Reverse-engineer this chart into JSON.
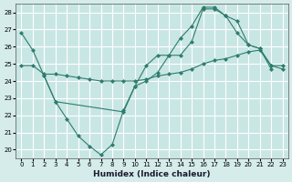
{
  "xlabel": "Humidex (Indice chaleur)",
  "line1_x": [
    0,
    1,
    2,
    3,
    4,
    5,
    6,
    7,
    8,
    9,
    10,
    11,
    12,
    13,
    14,
    15,
    16,
    17,
    18,
    19,
    20,
    21,
    22
  ],
  "line1_y": [
    26.8,
    25.8,
    24.3,
    22.8,
    21.8,
    20.8,
    20.2,
    19.7,
    20.3,
    22.3,
    23.7,
    24.0,
    24.5,
    25.5,
    26.5,
    27.2,
    28.3,
    28.3,
    27.8,
    27.5,
    26.1,
    25.9,
    24.7
  ],
  "line2_x": [
    0,
    1,
    2,
    3,
    4,
    5,
    6,
    7,
    8,
    9,
    10,
    11,
    12,
    13,
    14,
    15,
    16,
    17,
    18,
    19,
    20,
    21,
    22,
    23
  ],
  "line2_y": [
    24.9,
    24.9,
    24.4,
    24.4,
    24.3,
    24.2,
    24.1,
    24.0,
    24.0,
    24.0,
    24.0,
    24.1,
    24.3,
    24.4,
    24.5,
    24.7,
    25.0,
    25.2,
    25.3,
    25.5,
    25.7,
    25.8,
    24.9,
    24.9
  ],
  "line3_x": [
    2,
    3,
    9,
    10,
    11,
    12,
    13,
    14,
    15,
    16,
    17,
    18,
    19,
    20,
    21,
    22,
    23
  ],
  "line3_y": [
    24.3,
    22.8,
    22.2,
    23.7,
    24.9,
    25.5,
    25.5,
    25.5,
    26.3,
    28.2,
    28.2,
    27.8,
    26.8,
    26.1,
    25.9,
    24.9,
    24.7
  ],
  "line_color": "#2e7d6e",
  "bg_color": "#d5ecea",
  "grid_color": "#ffffff",
  "plot_bg": "#c8e6e4",
  "ylim": [
    19.5,
    28.5
  ],
  "xlim": [
    -0.5,
    23.5
  ],
  "yticks": [
    20,
    21,
    22,
    23,
    24,
    25,
    26,
    27,
    28
  ],
  "xticks": [
    0,
    1,
    2,
    3,
    4,
    5,
    6,
    7,
    8,
    9,
    10,
    11,
    12,
    13,
    14,
    15,
    16,
    17,
    18,
    19,
    20,
    21,
    22,
    23
  ]
}
